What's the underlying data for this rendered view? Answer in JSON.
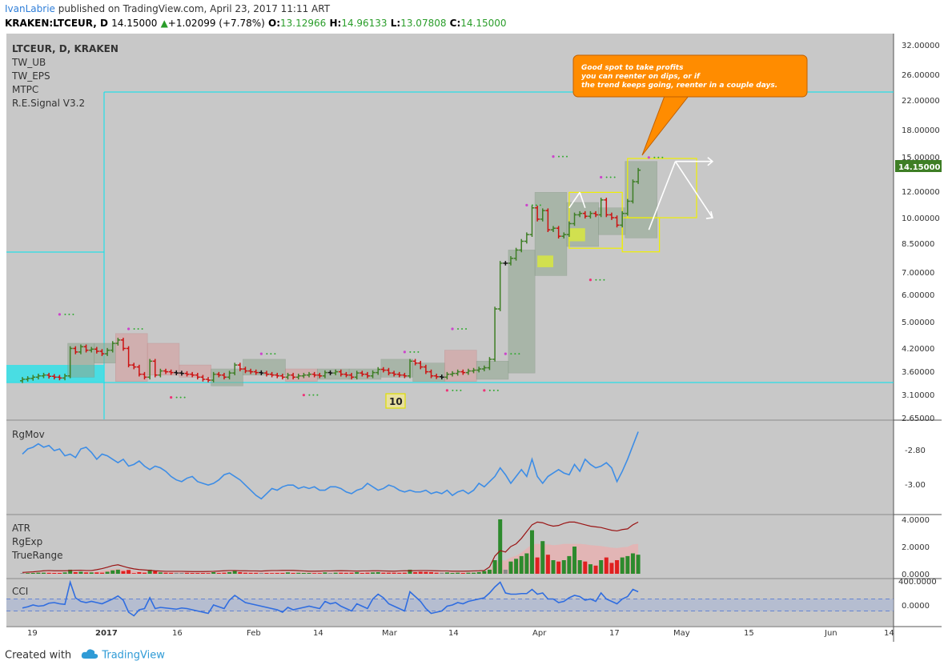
{
  "header": {
    "author": "IvanLabrie",
    "published_text": "published on TradingView.com, April 23, 2017 11:11 ART",
    "symbol": "KRAKEN:LTCEUR, D",
    "last_price": "14.15000",
    "change": "+1.02099 (+7.78%)",
    "o_label": "O:",
    "o_value": "13.12966",
    "h_label": "H:",
    "h_value": "14.96133",
    "l_label": "L:",
    "l_value": "13.07808",
    "c_label": "C:",
    "c_value": "14.15000"
  },
  "indicators": [
    "LTCEUR, D, KRAKEN",
    "TW_UB",
    "TW_EPS",
    "MTPC",
    "R.E.Signal V3.2"
  ],
  "annotation": {
    "lines": [
      "Good spot to take profits",
      "you can reenter on dips, or if",
      "the trend keeps going, reenter in a couple days."
    ],
    "badge": "10"
  },
  "colors": {
    "background": "#c8c8c8",
    "up": "#3e7e25",
    "down": "#cc1111",
    "neutral": "#111111",
    "cyan": "#33e0e8",
    "callout": "#ff8c00",
    "rgmov": "#3d8de6",
    "atr": "#9a1414",
    "cci": "#2f6de0"
  },
  "chart_data": [
    {
      "type": "candlestick",
      "title": "LTCEUR, D, KRAKEN",
      "y_scale": "log",
      "ylim": [
        2.65,
        32
      ],
      "y_ticks": [
        "32.00000",
        "26.00000",
        "22.00000",
        "18.00000",
        "15.00000",
        "12.00000",
        "10.00000",
        "8.50000",
        "7.00000",
        "6.00000",
        "5.00000",
        "4.20000",
        "3.60000",
        "3.10000",
        "2.65000"
      ],
      "last_price_label": "14.15000",
      "x_ticks": [
        "19",
        "2017",
        "16",
        "Feb",
        "14",
        "Mar",
        "14",
        "Apr",
        "17",
        "May",
        "15",
        "Jun",
        "14"
      ],
      "close": [
        3.5,
        3.52,
        3.55,
        3.58,
        3.6,
        3.57,
        3.55,
        3.53,
        3.58,
        4.3,
        4.2,
        4.35,
        4.25,
        4.28,
        4.22,
        4.15,
        4.25,
        4.45,
        4.55,
        4.3,
        3.85,
        3.8,
        3.62,
        3.55,
        3.95,
        3.6,
        3.7,
        3.68,
        3.66,
        3.65,
        3.64,
        3.62,
        3.6,
        3.55,
        3.5,
        3.48,
        3.62,
        3.6,
        3.55,
        3.65,
        3.85,
        3.75,
        3.7,
        3.68,
        3.66,
        3.65,
        3.62,
        3.6,
        3.58,
        3.55,
        3.6,
        3.55,
        3.58,
        3.6,
        3.62,
        3.6,
        3.58,
        3.66,
        3.65,
        3.68,
        3.62,
        3.6,
        3.55,
        3.65,
        3.62,
        3.58,
        3.66,
        3.74,
        3.72,
        3.65,
        3.62,
        3.6,
        3.58,
        3.95,
        3.9,
        3.8,
        3.68,
        3.58,
        3.56,
        3.55,
        3.62,
        3.64,
        3.68,
        3.66,
        3.7,
        3.72,
        3.75,
        3.78,
        4.0,
        5.6,
        7.6,
        7.6,
        7.85,
        8.3,
        8.8,
        9.2,
        11.0,
        10.2,
        10.8,
        9.5,
        9.6,
        9.1,
        9.2,
        9.9,
        10.5,
        10.6,
        10.4,
        10.6,
        10.5,
        11.6,
        10.5,
        10.3,
        9.8,
        10.6,
        11.5,
        13.1,
        14.15
      ],
      "annotation": "Good spot to take profits you can reenter on dips, or if the trend keeps going, reenter in a couple days."
    },
    {
      "type": "line",
      "title": "RgMov",
      "y_ticks": [
        "-2.80",
        "-3.00"
      ],
      "values": [
        -2.83,
        -2.8,
        -2.79,
        -2.77,
        -2.79,
        -2.78,
        -2.81,
        -2.8,
        -2.84,
        -2.83,
        -2.85,
        -2.8,
        -2.79,
        -2.82,
        -2.86,
        -2.83,
        -2.84,
        -2.86,
        -2.88,
        -2.86,
        -2.9,
        -2.89,
        -2.87,
        -2.9,
        -2.92,
        -2.9,
        -2.91,
        -2.93,
        -2.96,
        -2.98,
        -2.99,
        -2.97,
        -2.96,
        -2.99,
        -3.0,
        -3.01,
        -3.0,
        -2.98,
        -2.95,
        -2.94,
        -2.96,
        -2.98,
        -3.01,
        -3.04,
        -3.07,
        -3.09,
        -3.06,
        -3.03,
        -3.04,
        -3.02,
        -3.01,
        -3.01,
        -3.03,
        -3.02,
        -3.03,
        -3.02,
        -3.04,
        -3.04,
        -3.02,
        -3.02,
        -3.03,
        -3.05,
        -3.06,
        -3.04,
        -3.03,
        -3.0,
        -3.02,
        -3.04,
        -3.03,
        -3.01,
        -3.02,
        -3.04,
        -3.05,
        -3.04,
        -3.05,
        -3.05,
        -3.04,
        -3.06,
        -3.05,
        -3.06,
        -3.04,
        -3.07,
        -3.05,
        -3.04,
        -3.06,
        -3.04,
        -3.0,
        -3.02,
        -2.99,
        -2.96,
        -2.91,
        -2.95,
        -3.0,
        -2.96,
        -2.92,
        -2.96,
        -2.86,
        -2.96,
        -3.0,
        -2.96,
        -2.94,
        -2.92,
        -2.94,
        -2.95,
        -2.89,
        -2.93,
        -2.86,
        -2.89,
        -2.91,
        -2.9,
        -2.88,
        -2.91,
        -2.99,
        -2.93,
        -2.86,
        -2.78,
        -2.7
      ]
    },
    {
      "type": "bar",
      "title": "ATR / RgExp / TrueRange",
      "series_labels": [
        "ATR",
        "RgExp",
        "TrueRange"
      ],
      "y_ticks": [
        "4.0000",
        "2.0000",
        "0.0000"
      ],
      "atr": [
        0.1,
        0.12,
        0.14,
        0.18,
        0.22,
        0.24,
        0.22,
        0.22,
        0.22,
        0.24,
        0.25,
        0.26,
        0.24,
        0.24,
        0.3,
        0.38,
        0.48,
        0.6,
        0.66,
        0.55,
        0.44,
        0.36,
        0.31,
        0.28,
        0.25,
        0.22,
        0.2,
        0.18,
        0.18,
        0.18,
        0.18,
        0.17,
        0.16,
        0.16,
        0.16,
        0.17,
        0.18,
        0.2,
        0.22,
        0.24,
        0.24,
        0.22,
        0.22,
        0.21,
        0.21,
        0.2,
        0.22,
        0.24,
        0.24,
        0.25,
        0.25,
        0.25,
        0.23,
        0.21,
        0.19,
        0.19,
        0.2,
        0.21,
        0.21,
        0.22,
        0.23,
        0.22,
        0.21,
        0.2,
        0.21,
        0.21,
        0.22,
        0.22,
        0.21,
        0.2,
        0.19,
        0.21,
        0.22,
        0.22,
        0.23,
        0.24,
        0.24,
        0.23,
        0.22,
        0.21,
        0.21,
        0.19,
        0.19,
        0.19,
        0.2,
        0.21,
        0.22,
        0.24,
        0.5,
        1.3,
        1.7,
        1.6,
        2.0,
        2.2,
        2.6,
        3.1,
        3.6,
        3.8,
        3.75,
        3.6,
        3.5,
        3.55,
        3.7,
        3.8,
        3.8,
        3.7,
        3.6,
        3.5,
        3.45,
        3.4,
        3.3,
        3.2,
        3.15,
        3.25,
        3.3,
        3.6,
        3.8
      ],
      "true_range": [
        0.05,
        0.05,
        0.06,
        0.08,
        0.08,
        0.07,
        0.06,
        0.06,
        0.1,
        0.3,
        0.12,
        0.15,
        0.1,
        0.1,
        0.1,
        0.08,
        0.15,
        0.25,
        0.3,
        0.2,
        0.28,
        0.05,
        0.12,
        0.08,
        0.3,
        0.2,
        0.1,
        0.08,
        0.07,
        0.07,
        0.07,
        0.07,
        0.06,
        0.06,
        0.06,
        0.05,
        0.12,
        0.06,
        0.08,
        0.12,
        0.2,
        0.12,
        0.08,
        0.07,
        0.07,
        0.06,
        0.06,
        0.05,
        0.06,
        0.06,
        0.1,
        0.06,
        0.07,
        0.06,
        0.06,
        0.05,
        0.05,
        0.1,
        0.06,
        0.08,
        0.08,
        0.07,
        0.08,
        0.12,
        0.06,
        0.08,
        0.1,
        0.12,
        0.08,
        0.08,
        0.08,
        0.07,
        0.08,
        0.3,
        0.12,
        0.15,
        0.14,
        0.12,
        0.08,
        0.08,
        0.1,
        0.06,
        0.08,
        0.06,
        0.08,
        0.08,
        0.12,
        0.2,
        0.3,
        1.0,
        4.0,
        0.3,
        0.9,
        1.1,
        1.3,
        1.5,
        3.2,
        1.2,
        2.4,
        1.4,
        1.0,
        0.9,
        1.0,
        1.3,
        2.0,
        1.0,
        0.9,
        0.7,
        0.6,
        1.0,
        1.2,
        0.8,
        1.0,
        1.2,
        1.3,
        1.5,
        1.4
      ]
    },
    {
      "type": "line",
      "title": "CCI",
      "y_ticks": [
        "400.0000",
        "0.0000"
      ],
      "values": [
        -50,
        -30,
        0,
        -20,
        -10,
        30,
        40,
        20,
        10,
        380,
        120,
        60,
        40,
        60,
        40,
        20,
        60,
        100,
        150,
        80,
        -120,
        -180,
        -80,
        -60,
        120,
        -60,
        -40,
        -50,
        -60,
        -70,
        -50,
        -60,
        -80,
        -100,
        -120,
        -140,
        0,
        -30,
        -60,
        80,
        160,
        100,
        40,
        20,
        0,
        -20,
        -40,
        -60,
        -80,
        -120,
        -40,
        -80,
        -60,
        -40,
        -20,
        -40,
        -60,
        60,
        20,
        40,
        -20,
        -60,
        -100,
        20,
        -20,
        -60,
        100,
        180,
        120,
        20,
        -20,
        -60,
        -100,
        220,
        140,
        60,
        -60,
        -140,
        -120,
        -100,
        -20,
        0,
        40,
        20,
        60,
        80,
        100,
        120,
        200,
        300,
        380,
        200,
        180,
        180,
        190,
        190,
        260,
        180,
        200,
        100,
        100,
        40,
        60,
        120,
        160,
        140,
        80,
        100,
        60,
        200,
        100,
        60,
        20,
        100,
        140,
        260,
        220
      ]
    }
  ]
}
